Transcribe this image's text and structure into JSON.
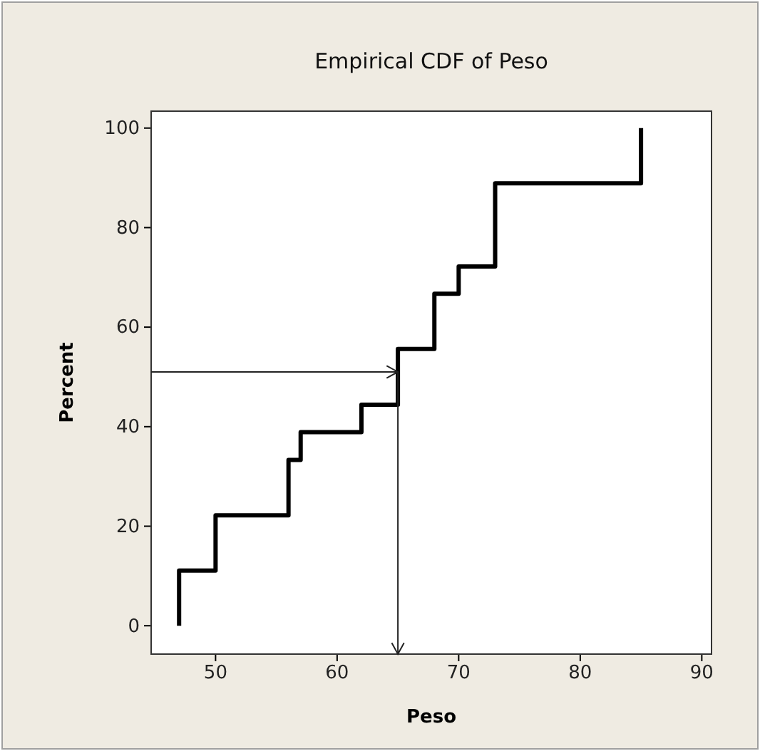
{
  "chart_data": {
    "type": "step",
    "title": "Empirical CDF of Peso",
    "xlabel": "Peso",
    "ylabel": "Percent",
    "x": [
      47,
      47,
      50,
      56,
      57,
      62,
      65,
      68,
      70,
      73,
      85
    ],
    "series": [
      {
        "color": "#000000",
        "values": [
          0,
          11.1,
          22.2,
          33.3,
          38.9,
          44.4,
          55.6,
          66.7,
          72.2,
          88.9,
          100
        ]
      }
    ],
    "xlim": [
      44.7,
      90.8
    ],
    "xticks": [
      50,
      60,
      70,
      80,
      90
    ],
    "ylim": [
      -5.7,
      103.4
    ],
    "yticks": [
      0,
      20,
      40,
      60,
      80,
      100
    ],
    "ref_lines": [
      {
        "axis": "y",
        "value": 51
      },
      {
        "axis": "x",
        "value": 65
      }
    ],
    "grid": false,
    "marker": "none",
    "line_style": "solid"
  }
}
